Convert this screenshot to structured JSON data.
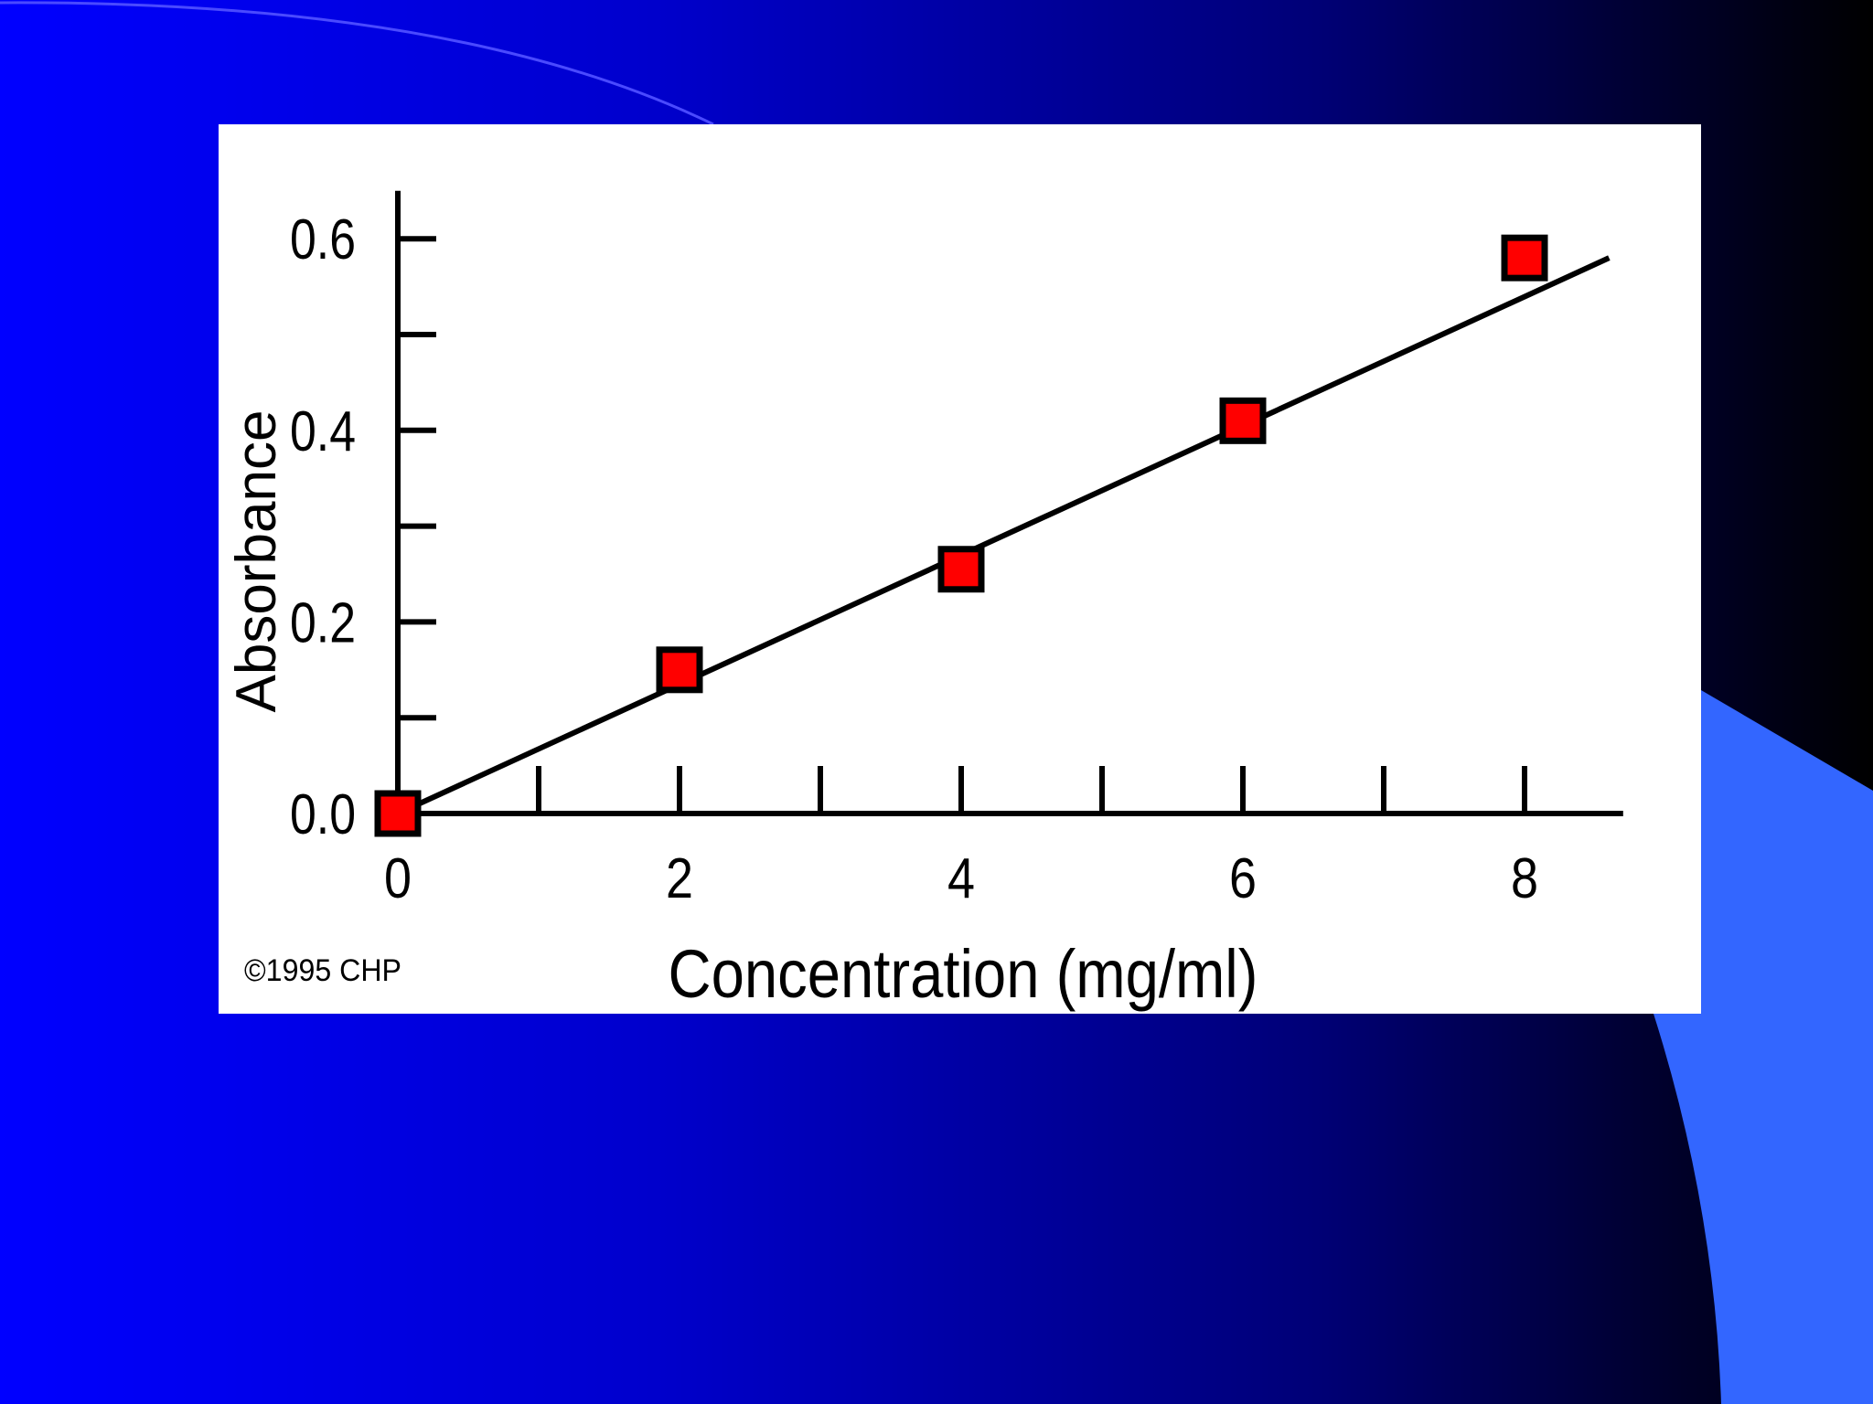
{
  "slide": {
    "background_colors": [
      "#0000ff",
      "#0000cc",
      "#000077",
      "#000000"
    ],
    "accent_color": "#3366ff"
  },
  "chart_data": {
    "type": "scatter",
    "title": "",
    "xlabel": "Concentration (mg/ml)",
    "ylabel": "Absorbance",
    "xlim": [
      0,
      8.7
    ],
    "ylim": [
      0,
      0.65
    ],
    "x_ticks": [
      0,
      2,
      4,
      6,
      8
    ],
    "x_tick_labels": [
      "0",
      "2",
      "4",
      "6",
      "8"
    ],
    "x_minor_ticks": [
      1,
      3,
      5,
      7
    ],
    "y_ticks": [
      0.0,
      0.2,
      0.4,
      0.6
    ],
    "y_tick_labels": [
      "0.0",
      "0.2",
      "0.4",
      "0.6"
    ],
    "y_minor_ticks": [
      0.1,
      0.3,
      0.5
    ],
    "grid": false,
    "series": [
      {
        "x": [
          0,
          2,
          4,
          6,
          8
        ],
        "y": [
          0.0,
          0.15,
          0.255,
          0.41,
          0.58
        ],
        "marker": "square",
        "marker_color": "#ff0000",
        "marker_edge_color": "#000000"
      }
    ],
    "trendline": {
      "x": [
        0,
        8.6
      ],
      "y": [
        0.0,
        0.58
      ]
    },
    "annotation": "©1995 CHP"
  }
}
